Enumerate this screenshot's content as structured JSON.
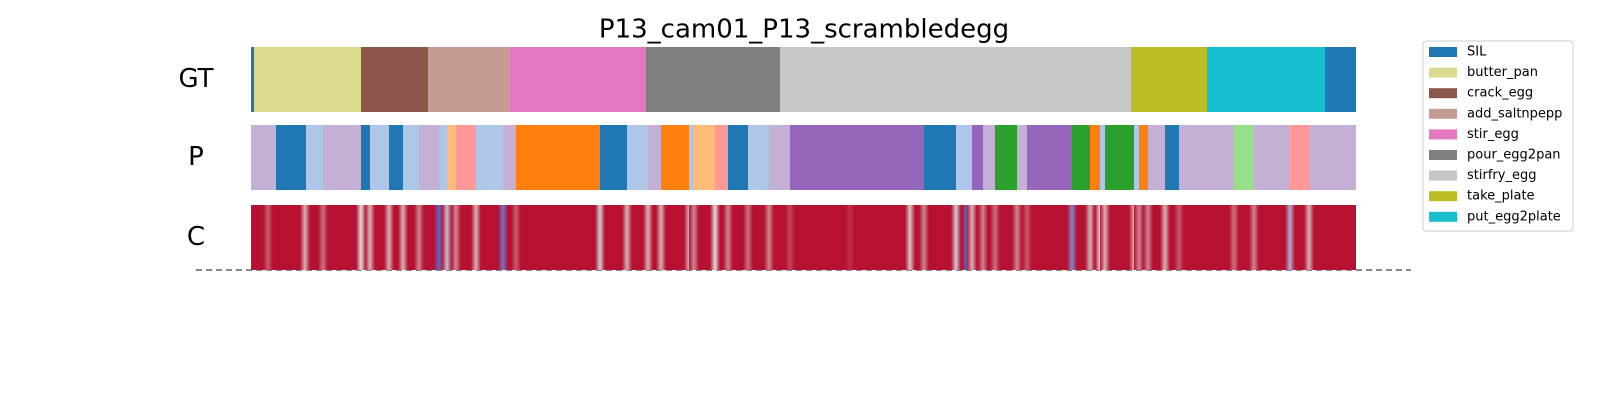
{
  "chart_data": {
    "type": "segmentation",
    "title": "P13_cam01_P13_scrambledegg",
    "xlim": [
      0,
      1105
    ],
    "legend": [
      {
        "name": "SIL",
        "color": "#1f77b4"
      },
      {
        "name": "butter_pan",
        "color": "#dbdb8d"
      },
      {
        "name": "crack_egg",
        "color": "#8c564b"
      },
      {
        "name": "add_saltnpepp",
        "color": "#c49c94"
      },
      {
        "name": "stir_egg",
        "color": "#e377c2"
      },
      {
        "name": "pour_egg2pan",
        "color": "#7f7f7f"
      },
      {
        "name": "stirfry_egg",
        "color": "#c7c7c7"
      },
      {
        "name": "take_plate",
        "color": "#bcbd22"
      },
      {
        "name": "put_egg2plate",
        "color": "#17becf"
      }
    ],
    "rows": [
      {
        "label": "GT",
        "segments": [
          {
            "start": 0,
            "end": 3,
            "color": "#1f77b4"
          },
          {
            "start": 3,
            "end": 110,
            "color": "#dbdb8d"
          },
          {
            "start": 110,
            "end": 177,
            "color": "#8c564b"
          },
          {
            "start": 177,
            "end": 259,
            "color": "#c49c94"
          },
          {
            "start": 259,
            "end": 395,
            "color": "#e377c2"
          },
          {
            "start": 395,
            "end": 529,
            "color": "#7f7f7f"
          },
          {
            "start": 529,
            "end": 880,
            "color": "#c7c7c7"
          },
          {
            "start": 880,
            "end": 956,
            "color": "#bcbd22"
          },
          {
            "start": 956,
            "end": 1074,
            "color": "#17becf"
          },
          {
            "start": 1074,
            "end": 1105,
            "color": "#1f77b4"
          }
        ]
      },
      {
        "label": "P",
        "segments": [
          {
            "start": 0,
            "end": 25,
            "color": "#c5b0d5"
          },
          {
            "start": 25,
            "end": 55,
            "color": "#1f77b4"
          },
          {
            "start": 55,
            "end": 72,
            "color": "#aec7e8"
          },
          {
            "start": 72,
            "end": 110,
            "color": "#c5b0d5"
          },
          {
            "start": 110,
            "end": 119,
            "color": "#1f77b4"
          },
          {
            "start": 119,
            "end": 138,
            "color": "#aec7e8"
          },
          {
            "start": 138,
            "end": 152,
            "color": "#1f77b4"
          },
          {
            "start": 152,
            "end": 168,
            "color": "#aec7e8"
          },
          {
            "start": 168,
            "end": 188,
            "color": "#c5b0d5"
          },
          {
            "start": 188,
            "end": 196,
            "color": "#aec7e8"
          },
          {
            "start": 196,
            "end": 205,
            "color": "#ffbb78"
          },
          {
            "start": 205,
            "end": 225,
            "color": "#ff9896"
          },
          {
            "start": 225,
            "end": 252,
            "color": "#aec7e8"
          },
          {
            "start": 252,
            "end": 265,
            "color": "#c5b0d5"
          },
          {
            "start": 265,
            "end": 349,
            "color": "#ff7f0e"
          },
          {
            "start": 349,
            "end": 376,
            "color": "#1f77b4"
          },
          {
            "start": 376,
            "end": 397,
            "color": "#aec7e8"
          },
          {
            "start": 397,
            "end": 410,
            "color": "#c5b0d5"
          },
          {
            "start": 410,
            "end": 438,
            "color": "#ff7f0e"
          },
          {
            "start": 438,
            "end": 443,
            "color": "#aec7e8"
          },
          {
            "start": 443,
            "end": 464,
            "color": "#ffbb78"
          },
          {
            "start": 464,
            "end": 477,
            "color": "#ff9896"
          },
          {
            "start": 477,
            "end": 497,
            "color": "#1f77b4"
          },
          {
            "start": 497,
            "end": 518,
            "color": "#aec7e8"
          },
          {
            "start": 518,
            "end": 539,
            "color": "#c5b0d5"
          },
          {
            "start": 539,
            "end": 673,
            "color": "#9467bd"
          },
          {
            "start": 673,
            "end": 705,
            "color": "#1f77b4"
          },
          {
            "start": 705,
            "end": 721,
            "color": "#aec7e8"
          },
          {
            "start": 721,
            "end": 732,
            "color": "#9467bd"
          },
          {
            "start": 732,
            "end": 744,
            "color": "#c5b0d5"
          },
          {
            "start": 744,
            "end": 766,
            "color": "#2ca02c"
          },
          {
            "start": 766,
            "end": 776,
            "color": "#c5b0d5"
          },
          {
            "start": 776,
            "end": 821,
            "color": "#9467bd"
          },
          {
            "start": 821,
            "end": 839,
            "color": "#2ca02c"
          },
          {
            "start": 839,
            "end": 849,
            "color": "#ff7f0e"
          },
          {
            "start": 849,
            "end": 854,
            "color": "#aec7e8"
          },
          {
            "start": 854,
            "end": 883,
            "color": "#2ca02c"
          },
          {
            "start": 883,
            "end": 888,
            "color": "#aec7e8"
          },
          {
            "start": 888,
            "end": 897,
            "color": "#ff7f0e"
          },
          {
            "start": 897,
            "end": 914,
            "color": "#c5b0d5"
          },
          {
            "start": 914,
            "end": 928,
            "color": "#1f77b4"
          },
          {
            "start": 928,
            "end": 983,
            "color": "#c5b0d5"
          },
          {
            "start": 983,
            "end": 1003,
            "color": "#98df8a"
          },
          {
            "start": 1003,
            "end": 1039,
            "color": "#c5b0d5"
          },
          {
            "start": 1039,
            "end": 1058,
            "color": "#ff9896"
          },
          {
            "start": 1058,
            "end": 1105,
            "color": "#c5b0d5"
          }
        ]
      }
    ],
    "confidence": {
      "label": "C",
      "baseline": 0.97,
      "x": [
        17,
        54,
        72,
        110,
        119,
        138,
        152,
        168,
        188,
        196,
        205,
        225,
        252,
        265,
        349,
        376,
        397,
        410,
        438,
        443,
        464,
        477,
        497,
        518,
        539,
        599,
        659,
        673,
        705,
        716,
        721,
        732,
        744,
        766,
        776,
        821,
        839,
        849,
        854,
        883,
        888,
        897,
        914,
        928,
        983,
        1003,
        1039,
        1058
      ],
      "values": [
        0.8,
        0.6,
        0.75,
        0.5,
        0.6,
        0.6,
        0.6,
        0.7,
        0.1,
        0.4,
        0.7,
        0.6,
        0.15,
        0.8,
        0.45,
        0.6,
        0.6,
        0.6,
        0.6,
        0.7,
        0.5,
        0.7,
        0.75,
        0.7,
        0.85,
        0.9,
        0.55,
        0.7,
        0.45,
        0.1,
        0.6,
        0.7,
        0.75,
        0.7,
        0.8,
        0.2,
        0.6,
        0.5,
        0.6,
        0.6,
        0.7,
        0.7,
        0.6,
        0.8,
        0.75,
        0.7,
        0.35,
        0.6
      ]
    }
  }
}
